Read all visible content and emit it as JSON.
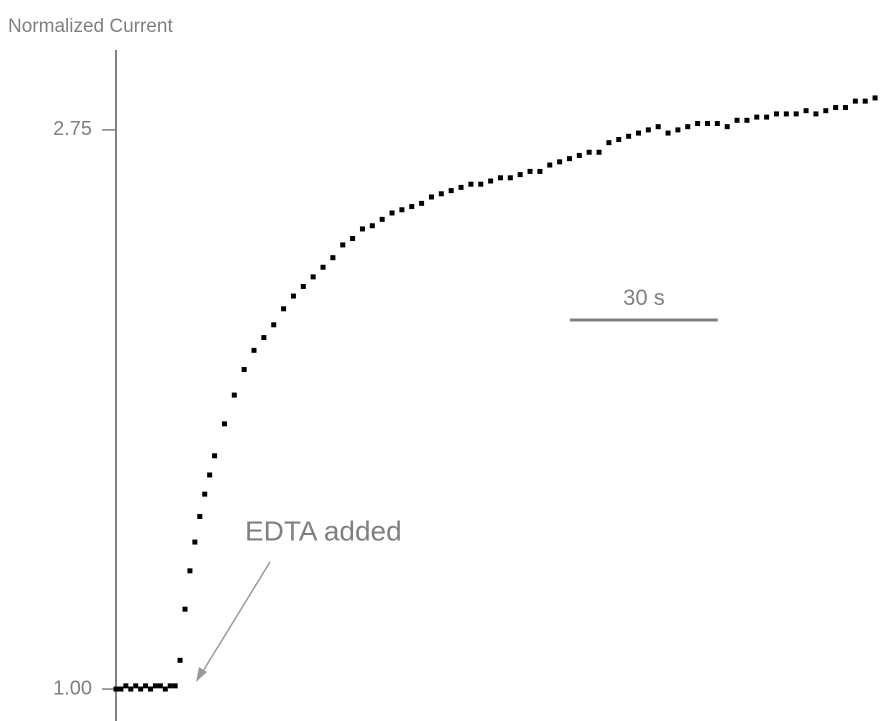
{
  "chart_data": {
    "type": "scatter",
    "y_label": "Normalized Current",
    "annotation": "EDTA added",
    "scale_bar": {
      "label": "30 s",
      "length": 30
    },
    "color": "#000000",
    "xlim": [
      0,
      155
    ],
    "ylim": [
      0.9,
      3.0
    ],
    "yticks": [
      {
        "value": 1,
        "label": "1.00"
      },
      2.75
    ],
    "x": [
      0,
      1,
      2,
      3,
      4,
      5,
      6,
      7,
      8,
      9,
      10,
      11,
      12,
      13,
      14,
      15,
      16,
      17,
      18,
      19,
      20,
      22,
      24,
      26,
      28,
      30,
      32,
      34,
      36,
      38,
      40,
      42,
      44,
      46,
      48,
      50,
      52,
      54,
      56,
      58,
      60,
      62,
      64,
      66,
      68,
      70,
      72,
      74,
      76,
      78,
      80,
      82,
      84,
      86,
      88,
      90,
      92,
      94,
      96,
      98,
      100,
      102,
      104,
      106,
      108,
      110,
      112,
      114,
      116,
      118,
      120,
      122,
      124,
      126,
      128,
      130,
      132,
      134,
      136,
      138,
      140,
      142,
      144,
      146,
      148,
      150,
      152,
      154
    ],
    "values": [
      1.0,
      1.0,
      1.01,
      1.0,
      1.01,
      1.0,
      1.01,
      1.0,
      1.01,
      1.01,
      1.0,
      1.01,
      1.01,
      1.09,
      1.25,
      1.37,
      1.46,
      1.54,
      1.61,
      1.67,
      1.73,
      1.83,
      1.92,
      2.0,
      2.06,
      2.1,
      2.14,
      2.19,
      2.23,
      2.26,
      2.29,
      2.32,
      2.35,
      2.39,
      2.41,
      2.44,
      2.45,
      2.47,
      2.49,
      2.5,
      2.51,
      2.52,
      2.54,
      2.55,
      2.56,
      2.57,
      2.58,
      2.58,
      2.59,
      2.6,
      2.6,
      2.61,
      2.62,
      2.62,
      2.64,
      2.65,
      2.66,
      2.67,
      2.68,
      2.68,
      2.71,
      2.72,
      2.73,
      2.74,
      2.75,
      2.76,
      2.74,
      2.75,
      2.76,
      2.77,
      2.77,
      2.77,
      2.76,
      2.78,
      2.78,
      2.79,
      2.79,
      2.8,
      2.8,
      2.8,
      2.81,
      2.8,
      2.81,
      2.82,
      2.82,
      2.84,
      2.84,
      2.85
    ]
  }
}
